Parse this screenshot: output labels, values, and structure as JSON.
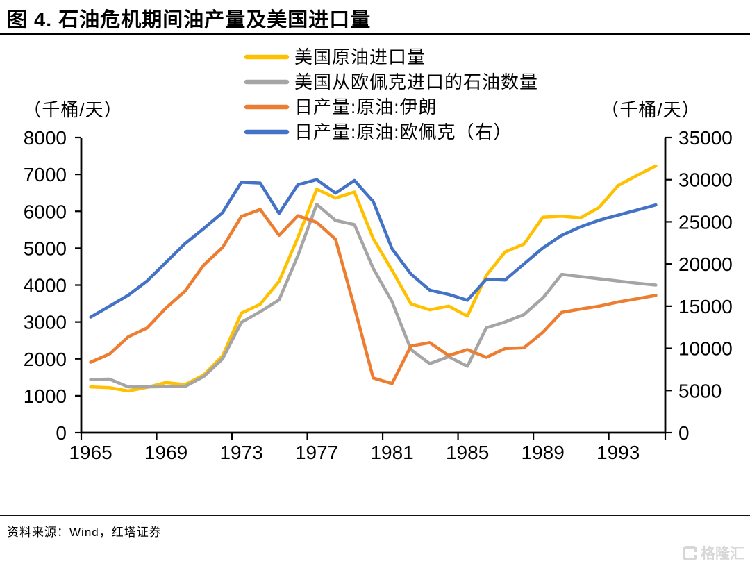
{
  "header": {
    "title": "图 4. 石油危机期间油产量及美国进口量"
  },
  "footer": {
    "source": "资料来源：Wind，红塔证券",
    "watermark": "格隆汇"
  },
  "chart_data": {
    "type": "line",
    "title": "图 4. 石油危机期间油产量及美国进口量",
    "x": [
      1965,
      1966,
      1967,
      1968,
      1969,
      1970,
      1971,
      1972,
      1973,
      1974,
      1975,
      1976,
      1977,
      1978,
      1979,
      1980,
      1981,
      1982,
      1983,
      1984,
      1985,
      1986,
      1987,
      1988,
      1989,
      1990,
      1991,
      1992,
      1993,
      1994,
      1995
    ],
    "x_tick_step": 4,
    "x_tick_labels": [
      "1965",
      "1969",
      "1973",
      "1977",
      "1981",
      "1985",
      "1989",
      "1993"
    ],
    "grid": false,
    "legend_position": "top-center",
    "left_axis": {
      "title": "（千桶/天）",
      "min": 0,
      "max": 8000,
      "tick_step": 1000
    },
    "right_axis": {
      "title": "（千桶/天）",
      "min": 0,
      "max": 35000,
      "tick_step": 5000
    },
    "series": [
      {
        "name": "美国原油进口量",
        "axis": "left",
        "color": "#FFC000",
        "values": [
          1240,
          1220,
          1130,
          1230,
          1360,
          1300,
          1560,
          2080,
          3240,
          3480,
          4100,
          5290,
          6600,
          6360,
          6520,
          5260,
          4400,
          3490,
          3330,
          3430,
          3160,
          4260,
          4900,
          5110,
          5840,
          5870,
          5820,
          6110,
          6700,
          6970,
          7230
        ]
      },
      {
        "name": "美国从欧佩克进口的石油数量",
        "axis": "left",
        "color": "#A5A5A5",
        "values": [
          1440,
          1450,
          1240,
          1240,
          1250,
          1250,
          1520,
          2000,
          2990,
          3280,
          3600,
          4800,
          6190,
          5750,
          5640,
          4450,
          3550,
          2250,
          1870,
          2060,
          1800,
          2840,
          3000,
          3200,
          3650,
          4290,
          4230,
          4170,
          4110,
          4050,
          4000
        ]
      },
      {
        "name": "日产量:原油:伊朗",
        "axis": "left",
        "color": "#ED7D31",
        "values": [
          1910,
          2130,
          2600,
          2840,
          3380,
          3830,
          4540,
          5020,
          5860,
          6050,
          5350,
          5880,
          5700,
          5240,
          3400,
          1480,
          1330,
          2350,
          2440,
          2090,
          2250,
          2040,
          2280,
          2300,
          2720,
          3260,
          3350,
          3430,
          3540,
          3630,
          3720
        ]
      },
      {
        "name": "日产量:原油:欧佩克（右）",
        "axis": "right",
        "color": "#4472C4",
        "values": [
          13700,
          15000,
          16300,
          18000,
          20200,
          22400,
          24200,
          26100,
          29700,
          29600,
          26000,
          29400,
          30000,
          28400,
          29900,
          27400,
          21800,
          18800,
          16900,
          16400,
          15700,
          18200,
          18100,
          20000,
          21900,
          23400,
          24400,
          25200,
          25800,
          26400,
          27000
        ]
      }
    ]
  }
}
